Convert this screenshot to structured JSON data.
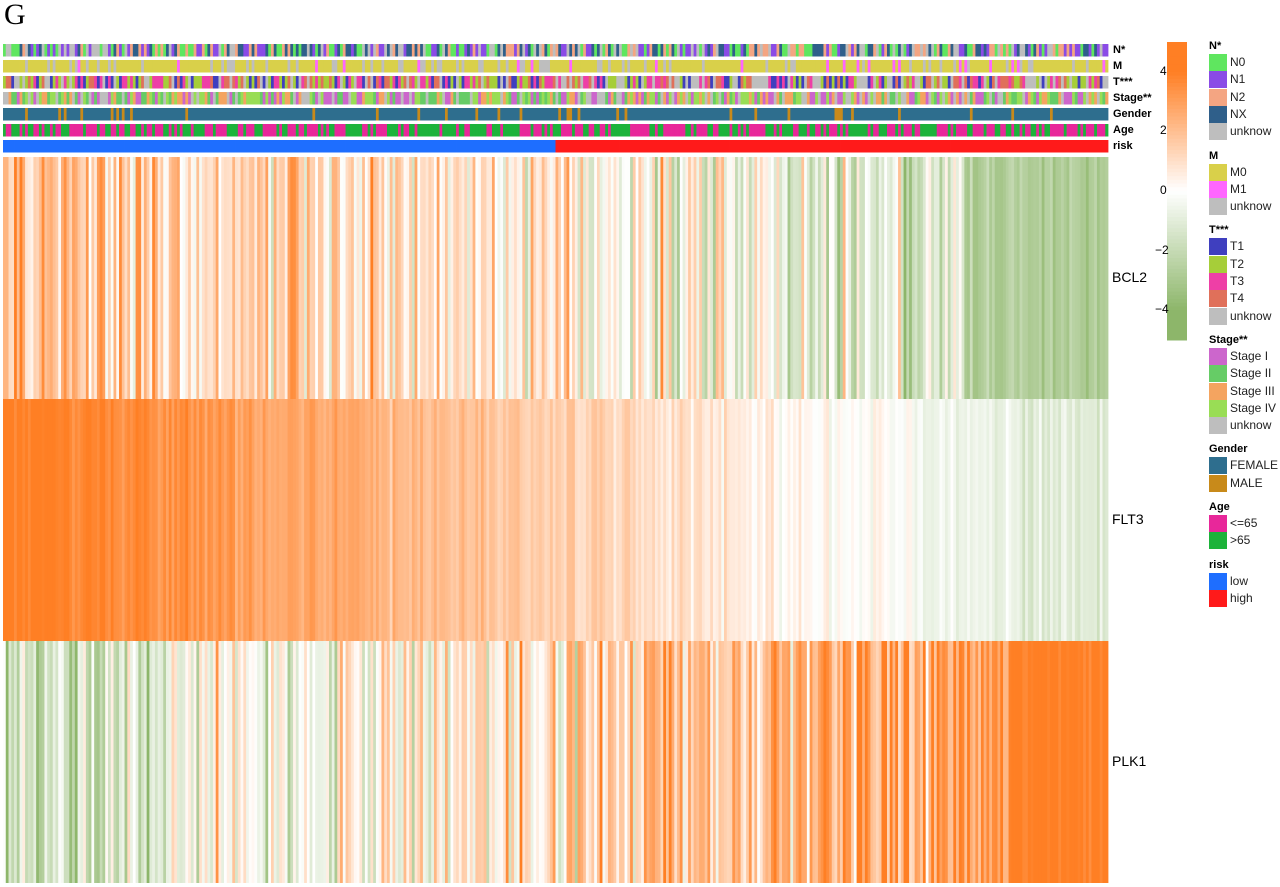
{
  "panel_letter": "G",
  "colors": {
    "high": "#FF7F24",
    "mid": "#FFFFFF",
    "low": "#8DB66A"
  },
  "chart_data": {
    "type": "heatmap",
    "genes": [
      "BCL2",
      "FLT3",
      "PLK1"
    ],
    "annotation_tracks": [
      {
        "label": "N*",
        "levels": [
          "N0",
          "N1",
          "N2",
          "NX",
          "unknow"
        ],
        "colors": [
          "#5FE65F",
          "#8A4BE6",
          "#F4A582",
          "#2F5F8A",
          "#BEBEBE"
        ]
      },
      {
        "label": "M",
        "levels": [
          "M0",
          "M1",
          "unknow"
        ],
        "colors": [
          "#D9D04A",
          "#FF66FF",
          "#BEBEBE"
        ]
      },
      {
        "label": "T***",
        "levels": [
          "T1",
          "T2",
          "T3",
          "T4",
          "unknow"
        ],
        "colors": [
          "#3F3FBF",
          "#A6CE39",
          "#EE3FA6",
          "#E0705A",
          "#BEBEBE"
        ]
      },
      {
        "label": "Stage**",
        "levels": [
          "Stage I",
          "Stage II",
          "Stage III",
          "Stage IV",
          "unknow"
        ],
        "colors": [
          "#CC66CC",
          "#66CC66",
          "#F4A460",
          "#99DD55",
          "#BEBEBE"
        ]
      },
      {
        "label": "Gender",
        "levels": [
          "FEMALE",
          "MALE"
        ],
        "colors": [
          "#2E6E8E",
          "#C88A1A"
        ]
      },
      {
        "label": "Age",
        "levels": [
          "<=65",
          ">65"
        ],
        "colors": [
          "#E8279A",
          "#1CB33A"
        ]
      },
      {
        "label": "risk",
        "levels": [
          "low",
          "high"
        ],
        "colors": [
          "#1E6EFF",
          "#FF1A1A"
        ]
      }
    ],
    "risk_split": {
      "low_fraction": 0.5
    },
    "colorbar": {
      "ticks": [
        4,
        2,
        0,
        -2,
        -4
      ],
      "range": [
        -5,
        5
      ]
    },
    "legends": [
      {
        "title": "N*",
        "items": [
          "N0",
          "N1",
          "N2",
          "NX",
          "unknow"
        ]
      },
      {
        "title": "M",
        "items": [
          "M0",
          "M1",
          "unknow"
        ]
      },
      {
        "title": "T***",
        "items": [
          "T1",
          "T2",
          "T3",
          "T4",
          "unknow"
        ]
      },
      {
        "title": "Stage**",
        "items": [
          "Stage I",
          "Stage II",
          "Stage III",
          "Stage IV",
          "unknow"
        ]
      },
      {
        "title": "Gender",
        "items": [
          "FEMALE",
          "MALE"
        ]
      },
      {
        "title": "Age",
        "items": [
          "<=65",
          ">65"
        ]
      },
      {
        "title": "risk",
        "items": [
          "low",
          "high"
        ]
      }
    ],
    "gene_trends": {
      "BCL2": {
        "start": 1.6,
        "end": -2.4
      },
      "FLT3": {
        "start": 4.2,
        "end": -1.2
      },
      "PLK1": {
        "start": -1.4,
        "end": 4.4
      }
    }
  }
}
